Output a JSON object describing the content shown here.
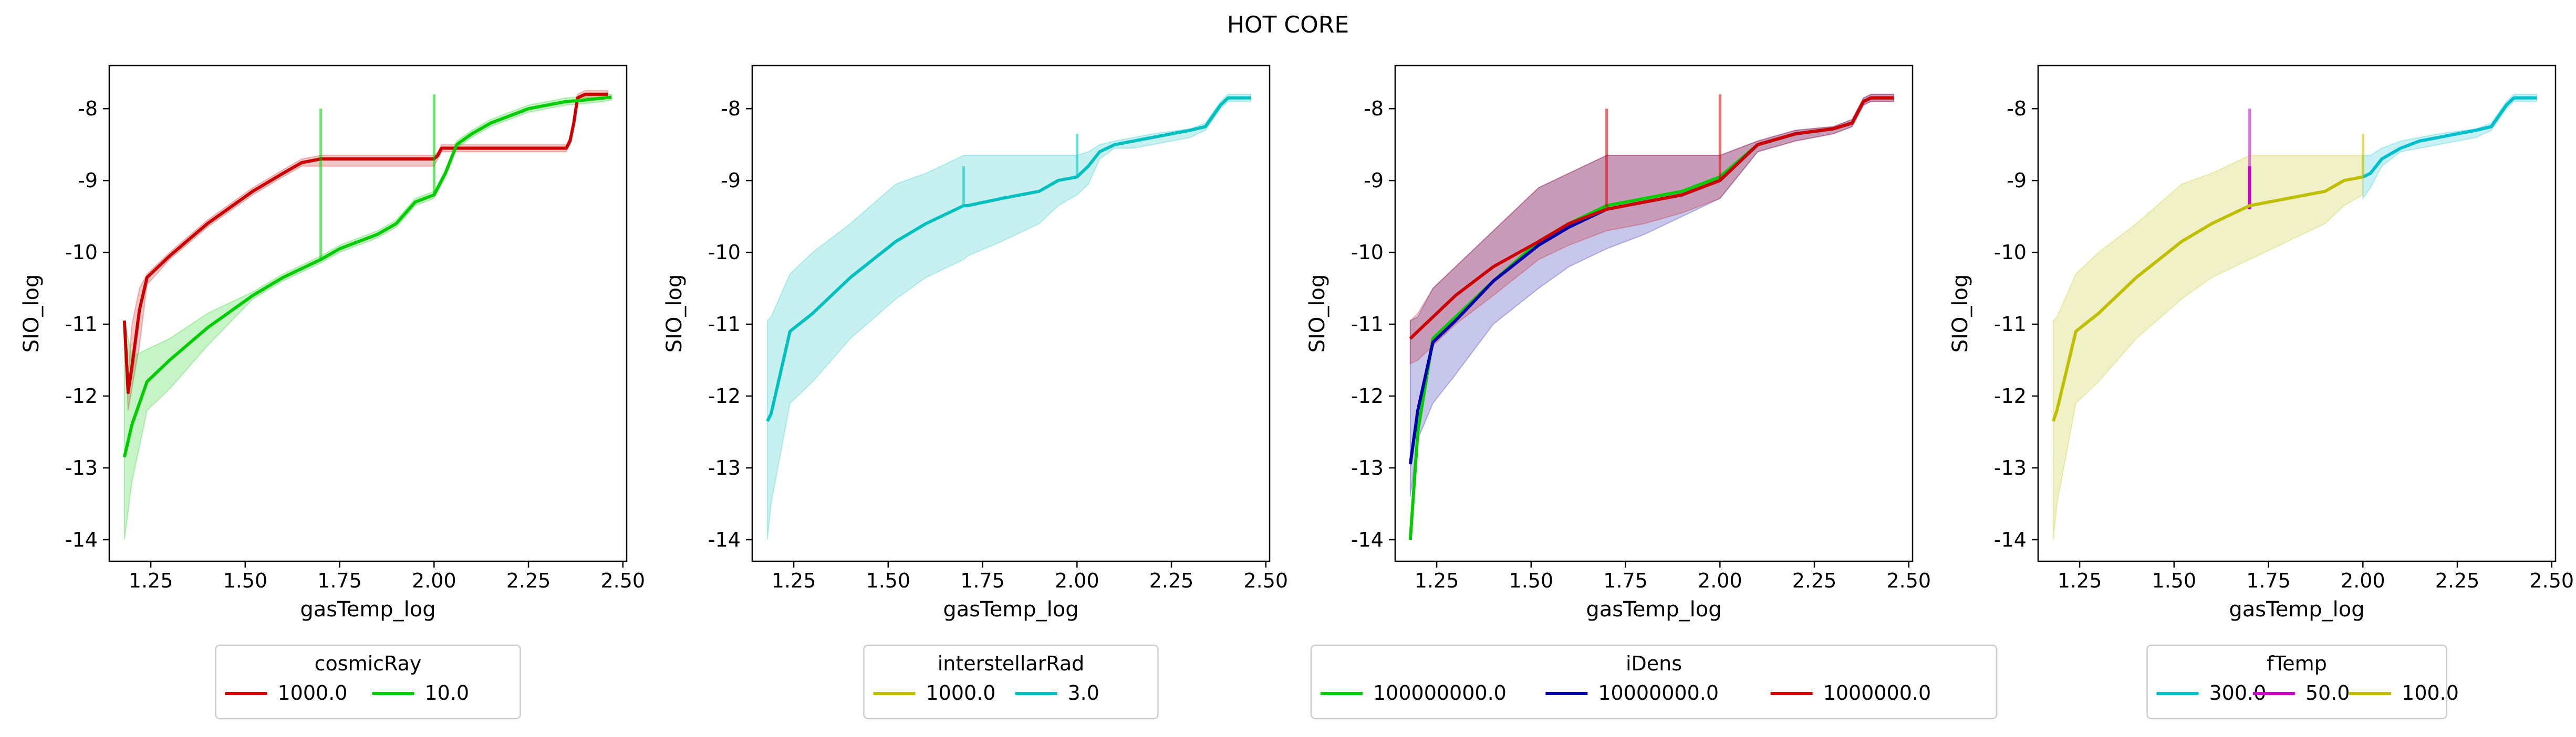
{
  "figure": {
    "suptitle": "HOT CORE"
  },
  "chart_data": [
    {
      "type": "line",
      "title": "",
      "xlabel": "gasTemp_log",
      "ylabel": "SIO_log",
      "xlim": [
        1.14,
        2.51
      ],
      "ylim": [
        -14.3,
        -7.4
      ],
      "xticks": [
        "1.25",
        "1.50",
        "1.75",
        "2.00",
        "2.25",
        "2.50"
      ],
      "yticks": [
        "-14",
        "-13",
        "-12",
        "-11",
        "-10",
        "-9",
        "-8"
      ],
      "legend": {
        "title": "cosmicRay",
        "placement": "below",
        "columns": 2
      },
      "series": [
        {
          "name": "1000.0",
          "color": "#cc0000",
          "x": [
            1.18,
            1.19,
            1.2,
            1.22,
            1.24,
            1.3,
            1.4,
            1.52,
            1.6,
            1.65,
            1.7,
            1.75,
            1.85,
            1.95,
            1.99,
            2.0,
            2.01,
            2.02,
            2.05,
            2.2,
            2.35,
            2.36,
            2.37,
            2.38,
            2.4,
            2.42,
            2.44,
            2.46
          ],
          "y": [
            -10.95,
            -11.95,
            -11.6,
            -10.8,
            -10.35,
            -10.05,
            -9.6,
            -9.15,
            -8.9,
            -8.75,
            -8.7,
            -8.7,
            -8.7,
            -8.7,
            -8.7,
            -8.7,
            -8.65,
            -8.55,
            -8.55,
            -8.55,
            -8.55,
            -8.45,
            -8.2,
            -7.85,
            -7.8,
            -7.8,
            -7.8,
            -7.8
          ],
          "band": {
            "upper": [
              -10.95,
              -11.7,
              -11.0,
              -10.5,
              -10.3,
              -10.0,
              -9.55,
              -9.1,
              -8.85,
              -8.7,
              -8.65,
              -8.65,
              -8.65,
              -8.65,
              -8.65,
              -8.65,
              -8.6,
              -8.5,
              -8.5,
              -8.5,
              -8.5,
              -8.4,
              -8.15,
              -7.8,
              -7.75,
              -7.75,
              -7.75,
              -7.75
            ],
            "lower": [
              -10.95,
              -12.2,
              -11.9,
              -11.3,
              -10.45,
              -10.1,
              -9.65,
              -9.2,
              -8.95,
              -8.8,
              -8.8,
              -8.8,
              -8.8,
              -8.8,
              -8.8,
              -8.8,
              -8.7,
              -8.6,
              -8.6,
              -8.6,
              -8.6,
              -8.5,
              -8.25,
              -7.9,
              -7.85,
              -7.85,
              -7.85,
              -7.85
            ]
          }
        },
        {
          "name": "10.0",
          "color": "#00cc00",
          "x": [
            1.18,
            1.2,
            1.24,
            1.3,
            1.4,
            1.52,
            1.6,
            1.7,
            1.75,
            1.8,
            1.85,
            1.9,
            1.95,
            2.0,
            2.03,
            2.06,
            2.1,
            2.15,
            2.2,
            2.25,
            2.3,
            2.35,
            2.4,
            2.45,
            2.47
          ],
          "y": [
            -12.85,
            -12.4,
            -11.8,
            -11.5,
            -11.05,
            -10.6,
            -10.35,
            -10.1,
            -9.95,
            -9.85,
            -9.75,
            -9.6,
            -9.3,
            -9.2,
            -8.9,
            -8.5,
            -8.35,
            -8.2,
            -8.1,
            -8.0,
            -7.95,
            -7.9,
            -7.88,
            -7.85,
            -7.84
          ],
          "band": {
            "upper": [
              -10.95,
              -11.45,
              -11.35,
              -11.2,
              -10.85,
              -10.55,
              -10.3,
              -10.05,
              -9.9,
              -9.8,
              -9.7,
              -9.55,
              -9.25,
              -9.15,
              -8.85,
              -8.45,
              -8.3,
              -8.15,
              -8.05,
              -7.95,
              -7.9,
              -7.85,
              -7.83,
              -7.8,
              -7.8
            ],
            "lower": [
              -14.0,
              -13.2,
              -12.2,
              -11.9,
              -11.3,
              -10.65,
              -10.4,
              -10.15,
              -10.0,
              -9.9,
              -9.8,
              -9.65,
              -9.35,
              -9.25,
              -8.95,
              -8.55,
              -8.4,
              -8.25,
              -8.15,
              -8.05,
              -8.0,
              -7.95,
              -7.93,
              -7.9,
              -7.88
            ]
          },
          "spikes": [
            {
              "x": 1.7,
              "from": -10.1,
              "to": -8.0
            },
            {
              "x": 2.0,
              "from": -9.2,
              "to": -7.8
            }
          ]
        }
      ]
    },
    {
      "type": "line",
      "title": "",
      "xlabel": "gasTemp_log",
      "ylabel": "SIO_log",
      "xlim": [
        1.14,
        2.51
      ],
      "ylim": [
        -14.3,
        -7.4
      ],
      "xticks": [
        "1.25",
        "1.50",
        "1.75",
        "2.00",
        "2.25",
        "2.50"
      ],
      "yticks": [
        "-14",
        "-13",
        "-12",
        "-11",
        "-10",
        "-9",
        "-8"
      ],
      "legend": {
        "title": "interstellarRad",
        "placement": "below",
        "columns": 2
      },
      "series": [
        {
          "name": "1000.0",
          "color": "#bfbf00",
          "x": [],
          "y": []
        },
        {
          "name": "3.0",
          "color": "#00bfbf",
          "x": [
            1.18,
            1.19,
            1.24,
            1.3,
            1.4,
            1.52,
            1.6,
            1.7,
            1.71,
            1.8,
            1.9,
            1.95,
            2.0,
            2.03,
            2.06,
            2.1,
            2.15,
            2.2,
            2.3,
            2.34,
            2.36,
            2.38,
            2.4,
            2.42,
            2.44,
            2.46
          ],
          "y": [
            -12.35,
            -12.25,
            -11.1,
            -10.85,
            -10.35,
            -9.85,
            -9.6,
            -9.35,
            -9.35,
            -9.25,
            -9.15,
            -9.0,
            -8.95,
            -8.8,
            -8.6,
            -8.5,
            -8.45,
            -8.4,
            -8.3,
            -8.25,
            -8.1,
            -7.95,
            -7.85,
            -7.85,
            -7.85,
            -7.85
          ],
          "band": {
            "upper": [
              -10.95,
              -10.9,
              -10.3,
              -10.0,
              -9.6,
              -9.05,
              -8.9,
              -8.65,
              -8.65,
              -8.65,
              -8.65,
              -8.65,
              -8.65,
              -8.6,
              -8.5,
              -8.45,
              -8.4,
              -8.35,
              -8.28,
              -8.2,
              -8.05,
              -7.9,
              -7.8,
              -7.8,
              -7.8,
              -7.8
            ],
            "lower": [
              -14.0,
              -13.5,
              -12.1,
              -11.8,
              -11.2,
              -10.65,
              -10.35,
              -10.1,
              -10.05,
              -9.85,
              -9.6,
              -9.35,
              -9.2,
              -9.05,
              -8.7,
              -8.55,
              -8.55,
              -8.5,
              -8.4,
              -8.3,
              -8.15,
              -8.0,
              -7.9,
              -7.9,
              -7.9,
              -7.9
            ]
          },
          "spikes": [
            {
              "x": 1.7,
              "from": -9.35,
              "to": -8.8
            },
            {
              "x": 2.0,
              "from": -8.95,
              "to": -8.35
            }
          ]
        }
      ]
    },
    {
      "type": "line",
      "title": "",
      "xlabel": "gasTemp_log",
      "ylabel": "SIO_log",
      "xlim": [
        1.14,
        2.51
      ],
      "ylim": [
        -14.3,
        -7.4
      ],
      "xticks": [
        "1.25",
        "1.50",
        "1.75",
        "2.00",
        "2.25",
        "2.50"
      ],
      "yticks": [
        "-14",
        "-13",
        "-12",
        "-11",
        "-10",
        "-9",
        "-8"
      ],
      "legend": {
        "title": "iDens",
        "placement": "below",
        "columns": 3
      },
      "series": [
        {
          "name": "100000000.0",
          "color": "#00cc00",
          "x": [
            1.18,
            1.2,
            1.24,
            1.3,
            1.4,
            1.52,
            1.6,
            1.7,
            1.8,
            1.9,
            2.0,
            2.1,
            2.2,
            2.3,
            2.35,
            2.38,
            2.4,
            2.46
          ],
          "y": [
            -14.0,
            -12.5,
            -11.2,
            -10.9,
            -10.4,
            -9.85,
            -9.6,
            -9.35,
            -9.25,
            -9.15,
            -8.95,
            -8.5,
            -8.35,
            -8.28,
            -8.2,
            -7.9,
            -7.85,
            -7.85
          ]
        },
        {
          "name": "10000000.0",
          "color": "#0000aa",
          "x": [
            1.18,
            1.2,
            1.24,
            1.3,
            1.4,
            1.52,
            1.6,
            1.7,
            1.8,
            1.9,
            2.0,
            2.1,
            2.2,
            2.3,
            2.35,
            2.38,
            2.4,
            2.46
          ],
          "y": [
            -12.95,
            -12.2,
            -11.25,
            -10.95,
            -10.4,
            -9.9,
            -9.65,
            -9.4,
            -9.3,
            -9.2,
            -9.0,
            -8.5,
            -8.35,
            -8.28,
            -8.2,
            -7.9,
            -7.85,
            -7.85
          ],
          "band": {
            "upper": [
              -10.95,
              -10.9,
              -10.5,
              -10.2,
              -9.7,
              -9.1,
              -8.9,
              -8.65,
              -8.65,
              -8.65,
              -8.65,
              -8.45,
              -8.3,
              -8.25,
              -8.15,
              -7.85,
              -7.8,
              -7.8
            ],
            "lower": [
              -13.4,
              -12.6,
              -12.1,
              -11.7,
              -11.0,
              -10.5,
              -10.2,
              -9.95,
              -9.75,
              -9.5,
              -9.25,
              -8.6,
              -8.45,
              -8.35,
              -8.25,
              -7.95,
              -7.9,
              -7.9
            ]
          }
        },
        {
          "name": "1000000.0",
          "color": "#cc0000",
          "x": [
            1.18,
            1.2,
            1.24,
            1.3,
            1.4,
            1.52,
            1.6,
            1.7,
            1.8,
            1.9,
            2.0,
            2.1,
            2.2,
            2.3,
            2.35,
            2.38,
            2.4,
            2.46
          ],
          "y": [
            -11.2,
            -11.1,
            -10.9,
            -10.6,
            -10.2,
            -9.85,
            -9.6,
            -9.4,
            -9.3,
            -9.2,
            -9.0,
            -8.5,
            -8.35,
            -8.28,
            -8.2,
            -7.9,
            -7.85,
            -7.85
          ],
          "band": {
            "upper": [
              -10.95,
              -10.85,
              -10.5,
              -10.2,
              -9.7,
              -9.1,
              -8.9,
              -8.65,
              -8.65,
              -8.65,
              -8.65,
              -8.45,
              -8.3,
              -8.25,
              -8.15,
              -7.85,
              -7.8,
              -7.8
            ],
            "lower": [
              -11.55,
              -11.5,
              -11.3,
              -11.0,
              -10.6,
              -10.1,
              -9.9,
              -9.7,
              -9.6,
              -9.45,
              -9.25,
              -8.6,
              -8.45,
              -8.35,
              -8.25,
              -7.95,
              -7.9,
              -7.9
            ]
          },
          "spikes": [
            {
              "x": 1.7,
              "from": -9.4,
              "to": -8.0
            },
            {
              "x": 2.0,
              "from": -9.0,
              "to": -7.8
            }
          ]
        }
      ]
    },
    {
      "type": "line",
      "title": "",
      "xlabel": "gasTemp_log",
      "ylabel": "SIO_log",
      "xlim": [
        1.14,
        2.51
      ],
      "ylim": [
        -14.3,
        -7.4
      ],
      "xticks": [
        "1.25",
        "1.50",
        "1.75",
        "2.00",
        "2.25",
        "2.50"
      ],
      "yticks": [
        "-14",
        "-13",
        "-12",
        "-11",
        "-10",
        "-9",
        "-8"
      ],
      "legend": {
        "title": "fTemp",
        "placement": "below",
        "columns": 3
      },
      "series": [
        {
          "name": "300.0",
          "color": "#00bfcc",
          "x": [
            2.0,
            2.02,
            2.05,
            2.1,
            2.15,
            2.2,
            2.3,
            2.34,
            2.36,
            2.38,
            2.4,
            2.42,
            2.44,
            2.46
          ],
          "y": [
            -8.95,
            -8.9,
            -8.7,
            -8.55,
            -8.45,
            -8.4,
            -8.3,
            -8.25,
            -8.1,
            -7.95,
            -7.85,
            -7.85,
            -7.85,
            -7.85
          ],
          "band": {
            "upper": [
              -8.65,
              -8.65,
              -8.55,
              -8.45,
              -8.4,
              -8.35,
              -8.28,
              -8.2,
              -8.05,
              -7.9,
              -7.8,
              -7.8,
              -7.8,
              -7.8
            ],
            "lower": [
              -9.25,
              -9.1,
              -8.8,
              -8.6,
              -8.55,
              -8.5,
              -8.4,
              -8.3,
              -8.15,
              -8.0,
              -7.9,
              -7.9,
              -7.9,
              -7.9
            ]
          }
        },
        {
          "name": "50.0",
          "color": "#cc00cc",
          "x": [
            1.7,
            1.7
          ],
          "y": [
            -9.4,
            -8.8
          ],
          "spikes": [
            {
              "x": 1.7,
              "from": -9.4,
              "to": -8.0
            }
          ]
        },
        {
          "name": "100.0",
          "color": "#bfbf00",
          "x": [
            1.18,
            1.19,
            1.24,
            1.3,
            1.4,
            1.52,
            1.6,
            1.7,
            1.8,
            1.9,
            1.95,
            2.0
          ],
          "y": [
            -12.35,
            -12.2,
            -11.1,
            -10.85,
            -10.35,
            -9.85,
            -9.6,
            -9.35,
            -9.25,
            -9.15,
            -9.0,
            -8.95
          ],
          "band": {
            "upper": [
              -10.95,
              -10.9,
              -10.3,
              -10.0,
              -9.6,
              -9.05,
              -8.9,
              -8.65,
              -8.65,
              -8.65,
              -8.65,
              -8.65
            ],
            "lower": [
              -14.0,
              -13.5,
              -12.1,
              -11.8,
              -11.2,
              -10.65,
              -10.35,
              -10.1,
              -9.85,
              -9.6,
              -9.35,
              -9.2
            ]
          },
          "spikes": [
            {
              "x": 2.0,
              "from": -8.95,
              "to": -8.35
            }
          ]
        }
      ]
    }
  ]
}
